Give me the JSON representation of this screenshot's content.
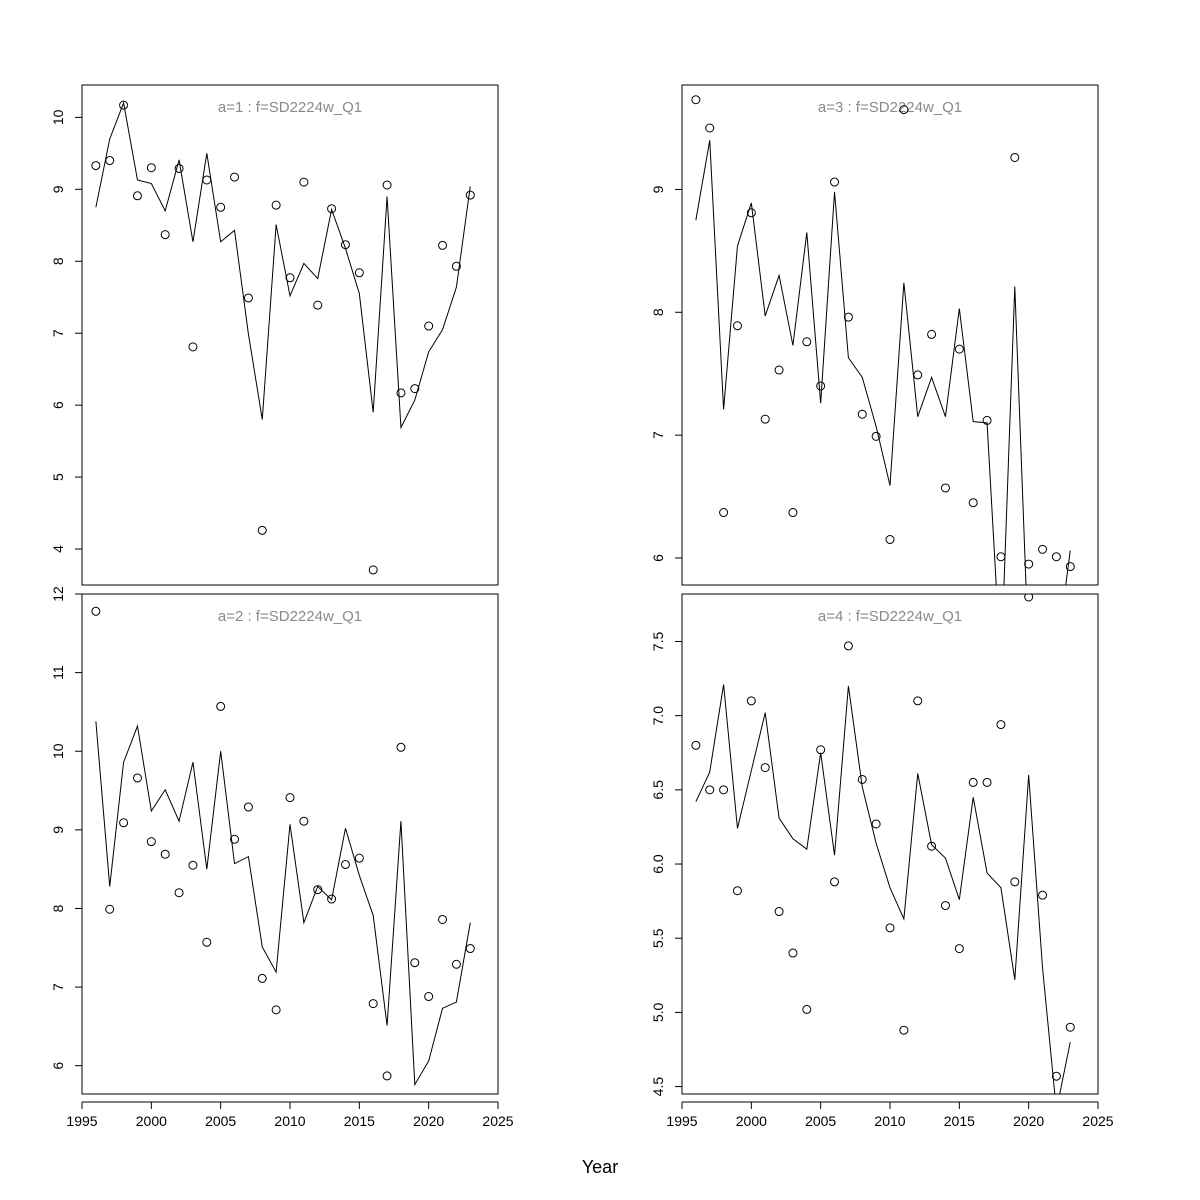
{
  "xlabel": "Year",
  "chart_data": [
    {
      "type": "line",
      "title": "a=1  :  f=SD2224w_Q1",
      "panel": "top-left",
      "xlim": [
        1995,
        2025
      ],
      "ylim": [
        3.5,
        10.45
      ],
      "xticks": [
        1995,
        2000,
        2005,
        2010,
        2015,
        2020,
        2025
      ],
      "yticks": [
        4,
        5,
        6,
        7,
        8,
        9,
        10
      ],
      "x": [
        1996,
        1997,
        1998,
        1999,
        2000,
        2001,
        2002,
        2003,
        2004,
        2005,
        2006,
        2007,
        2008,
        2009,
        2010,
        2011,
        2012,
        2013,
        2014,
        2015,
        2016,
        2017,
        2018,
        2019,
        2020,
        2021,
        2022,
        2023
      ],
      "observed": [
        9.33,
        9.4,
        10.17,
        8.91,
        9.3,
        8.37,
        9.29,
        6.81,
        9.13,
        8.75,
        9.17,
        7.49,
        4.26,
        8.78,
        7.77,
        9.1,
        7.39,
        8.73,
        8.23,
        7.84,
        3.71,
        9.06,
        6.17,
        6.23,
        7.1,
        8.22,
        7.93,
        8.92
      ],
      "fitted": [
        8.75,
        9.7,
        10.2,
        9.13,
        9.08,
        8.7,
        9.41,
        8.27,
        9.5,
        8.27,
        8.43,
        6.99,
        5.8,
        8.51,
        7.52,
        7.97,
        7.76,
        8.72,
        8.18,
        7.55,
        5.9,
        8.9,
        5.69,
        6.07,
        6.74,
        7.05,
        7.64,
        9.04
      ]
    },
    {
      "type": "line",
      "title": "a=3  :  f=SD2224w_Q1",
      "panel": "top-right",
      "xlim": [
        1995,
        2025
      ],
      "ylim": [
        5.78,
        9.85
      ],
      "xticks": [
        1995,
        2000,
        2005,
        2010,
        2015,
        2020,
        2025
      ],
      "yticks": [
        6,
        7,
        8,
        9
      ],
      "x": [
        1996,
        1997,
        1998,
        1999,
        2000,
        2001,
        2002,
        2003,
        2004,
        2005,
        2006,
        2007,
        2008,
        2009,
        2010,
        2011,
        2012,
        2013,
        2014,
        2015,
        2016,
        2017,
        2018,
        2019,
        2020,
        2021,
        2022,
        2023
      ],
      "observed": [
        9.73,
        9.5,
        6.37,
        7.89,
        8.81,
        7.13,
        7.53,
        6.37,
        7.76,
        7.4,
        9.06,
        7.96,
        7.17,
        6.99,
        6.15,
        9.65,
        7.49,
        7.82,
        6.57,
        7.7,
        6.45,
        7.12,
        6.01,
        9.26,
        5.95,
        6.07,
        6.01,
        5.93
      ],
      "fitted": [
        8.75,
        9.4,
        7.21,
        8.54,
        8.89,
        7.97,
        8.3,
        7.73,
        8.65,
        7.26,
        8.98,
        7.63,
        7.47,
        7.07,
        6.59,
        8.24,
        7.15,
        7.47,
        7.15,
        8.03,
        7.11,
        7.1,
        5.1,
        8.21,
        5.2,
        5.05,
        5.2,
        6.06
      ]
    },
    {
      "type": "line",
      "title": "a=2  :  f=SD2224w_Q1",
      "panel": "bottom-left",
      "xlim": [
        1995,
        2025
      ],
      "ylim": [
        5.64,
        12.0
      ],
      "xticks": [
        1995,
        2000,
        2005,
        2010,
        2015,
        2020,
        2025
      ],
      "yticks": [
        6,
        7,
        8,
        9,
        10,
        11,
        12
      ],
      "x": [
        1996,
        1997,
        1998,
        1999,
        2000,
        2001,
        2002,
        2003,
        2004,
        2005,
        2006,
        2007,
        2008,
        2009,
        2010,
        2011,
        2012,
        2013,
        2014,
        2015,
        2016,
        2017,
        2018,
        2019,
        2020,
        2021,
        2022,
        2023
      ],
      "observed": [
        11.78,
        7.99,
        9.09,
        9.66,
        8.85,
        8.69,
        8.2,
        8.55,
        7.57,
        10.57,
        8.88,
        9.29,
        7.11,
        6.71,
        9.41,
        9.11,
        8.24,
        8.12,
        8.56,
        8.64,
        6.79,
        5.87,
        10.05,
        7.31,
        6.88,
        7.86,
        7.29,
        7.49
      ],
      "fitted": [
        10.38,
        8.28,
        9.86,
        10.32,
        9.24,
        9.51,
        9.11,
        9.86,
        8.5,
        10.0,
        8.57,
        8.66,
        7.51,
        7.19,
        9.07,
        7.82,
        8.28,
        8.11,
        9.02,
        8.42,
        7.91,
        6.51,
        9.11,
        5.76,
        6.06,
        6.73,
        6.81,
        7.82
      ]
    },
    {
      "type": "line",
      "title": "a=4  :  f=SD2224w_Q1",
      "panel": "bottom-right",
      "xlim": [
        1995,
        2025
      ],
      "ylim": [
        4.45,
        7.82
      ],
      "xticks": [
        1995,
        2000,
        2005,
        2010,
        2015,
        2020,
        2025
      ],
      "yticks": [
        4.5,
        5.0,
        5.5,
        6.0,
        6.5,
        7.0,
        7.5
      ],
      "yticklabels": [
        "4.5",
        "5.0",
        "5.5",
        "6.0",
        "6.5",
        "7.0",
        "7.5"
      ],
      "x": [
        1996,
        1997,
        1998,
        1999,
        2000,
        2001,
        2002,
        2003,
        2004,
        2005,
        2006,
        2007,
        2008,
        2009,
        2010,
        2011,
        2012,
        2013,
        2014,
        2015,
        2016,
        2017,
        2018,
        2019,
        2020,
        2021,
        2022,
        2023
      ],
      "observed": [
        6.8,
        6.5,
        6.5,
        5.82,
        7.1,
        6.65,
        5.68,
        5.4,
        5.02,
        6.77,
        5.88,
        7.47,
        6.57,
        6.27,
        5.57,
        4.88,
        7.1,
        6.12,
        5.72,
        5.43,
        6.55,
        6.55,
        6.94,
        5.88,
        7.8,
        5.79,
        4.57,
        4.9
      ],
      "fitted": [
        6.42,
        6.62,
        7.21,
        6.24,
        6.63,
        7.02,
        6.31,
        6.17,
        6.1,
        6.75,
        6.06,
        7.2,
        6.52,
        6.14,
        5.84,
        5.63,
        6.61,
        6.13,
        6.04,
        5.76,
        6.45,
        5.94,
        5.84,
        5.22,
        6.6,
        5.3,
        4.34,
        4.8
      ]
    }
  ]
}
